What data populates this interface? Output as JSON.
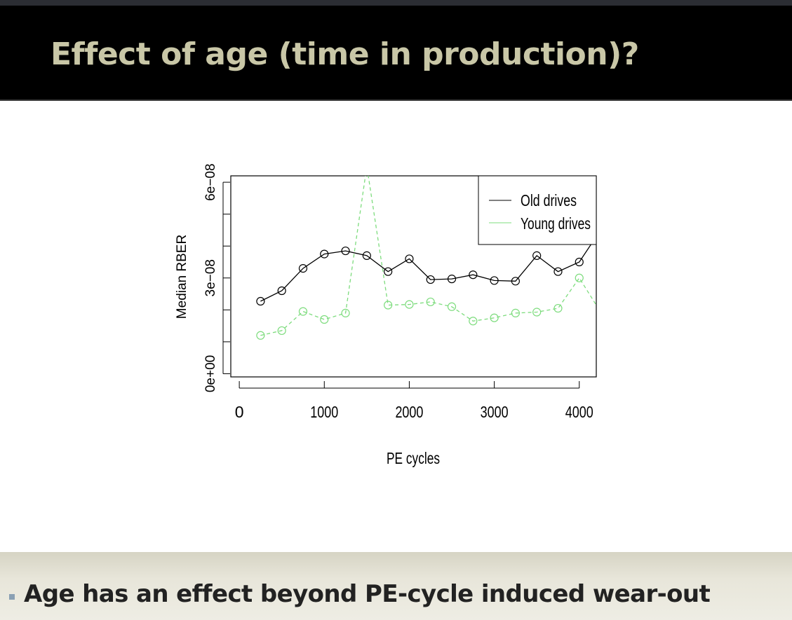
{
  "slide": {
    "title": "Effect of age (time in production)?",
    "bullet": "Age has an effect beyond PE-cycle induced wear-out"
  },
  "colors": {
    "header_bg": "#000000",
    "title_text": "#c9c7a7",
    "old_series": "#000000",
    "young_series": "#7ddc7d",
    "footer_bg": "#e8e6da"
  },
  "chart_data": {
    "type": "line",
    "title": "",
    "xlabel": "PE cycles",
    "ylabel": "Median RBER",
    "xlim": [
      -100,
      4200
    ],
    "ylim": [
      -1e-09,
      6.2e-08
    ],
    "x_ticks": [
      0,
      1000,
      2000,
      3000,
      4000
    ],
    "x_tick_labels": [
      "0",
      "1000",
      "2000",
      "3000",
      "4000"
    ],
    "y_ticks": [
      0,
      1e-08,
      2e-08,
      3e-08,
      4e-08,
      5e-08,
      6e-08
    ],
    "y_tick_labels": [
      {
        "value": 0,
        "label": "0e+00"
      },
      {
        "value": 3e-08,
        "label": "3e−08"
      },
      {
        "value": 6e-08,
        "label": "6e−08"
      }
    ],
    "legend": {
      "position": "top-right",
      "entries": [
        "Old drives",
        "Young drives"
      ]
    },
    "series": [
      {
        "name": "Old drives",
        "style": "solid",
        "color": "#000000",
        "x": [
          250,
          500,
          750,
          1000,
          1250,
          1500,
          1750,
          2000,
          2250,
          2500,
          2750,
          3000,
          3250,
          3500,
          3750,
          4000
        ],
        "values": [
          2.27e-08,
          2.6e-08,
          3.3e-08,
          3.75e-08,
          3.85e-08,
          3.7e-08,
          3.2e-08,
          3.6e-08,
          2.95e-08,
          2.97e-08,
          3.1e-08,
          2.92e-08,
          2.9e-08,
          3.7e-08,
          3.2e-08,
          3.5e-08
        ],
        "extends_to": {
          "x": 4200,
          "value": 4.3e-08
        }
      },
      {
        "name": "Young drives",
        "style": "dashed",
        "color": "#7ddc7d",
        "x": [
          250,
          500,
          750,
          1000,
          1250,
          1750,
          2000,
          2250,
          2500,
          2750,
          3000,
          3250,
          3500,
          3750,
          4000
        ],
        "values": [
          1.2e-08,
          1.35e-08,
          1.95e-08,
          1.7e-08,
          1.9e-08,
          2.15e-08,
          2.17e-08,
          2.25e-08,
          2.1e-08,
          1.65e-08,
          1.75e-08,
          1.9e-08,
          1.93e-08,
          2.05e-08,
          3e-08
        ],
        "peak": {
          "x": 1500,
          "value": 6.5e-08
        },
        "extends_to": {
          "x": 4200,
          "value": 2.15e-08
        }
      }
    ]
  }
}
